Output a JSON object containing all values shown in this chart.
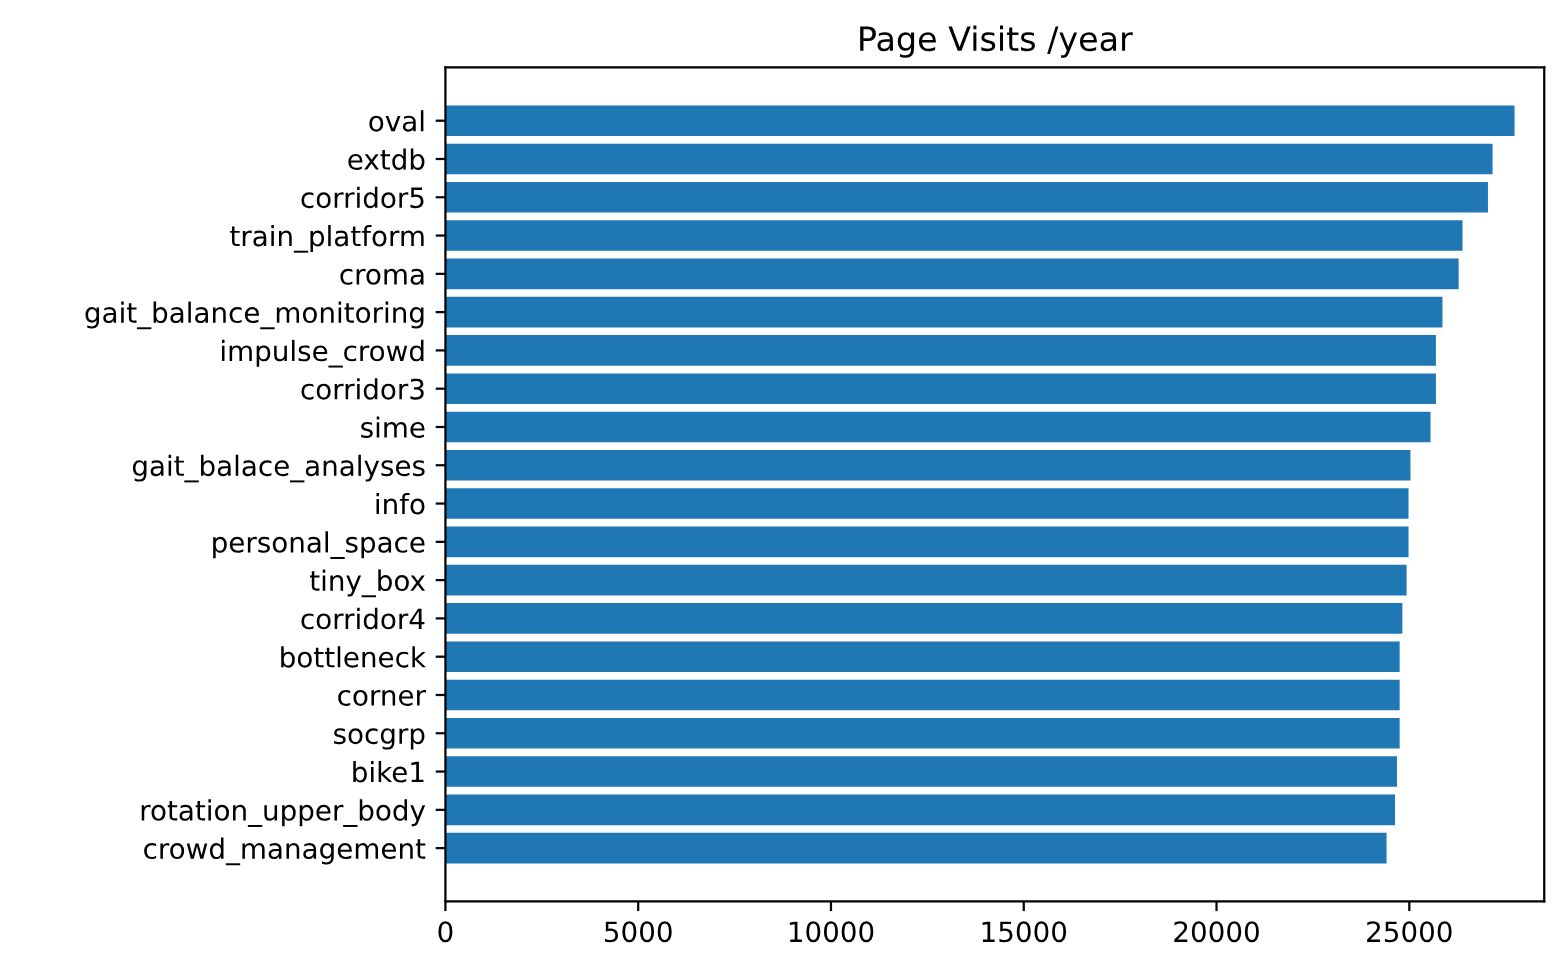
{
  "chart_data": {
    "type": "bar",
    "orientation": "horizontal",
    "title": "Page Visits /year",
    "categories": [
      "oval",
      "extdb",
      "corridor5",
      "train_platform",
      "croma",
      "gait_balance_monitoring",
      "impulse_crowd",
      "corridor3",
      "sime",
      "gait_balace_analyses",
      "info",
      "personal_space",
      "tiny_box",
      "corridor4",
      "bottleneck",
      "corner",
      "socgrp",
      "bike1",
      "rotation_upper_body",
      "crowd_management"
    ],
    "values": [
      27730,
      27160,
      27040,
      26380,
      26280,
      25860,
      25690,
      25690,
      25550,
      25030,
      24980,
      24980,
      24930,
      24820,
      24750,
      24750,
      24750,
      24680,
      24630,
      24410
    ],
    "color": "#1f77b4",
    "xlim": [
      0,
      28500
    ],
    "xticks": [
      0,
      5000,
      10000,
      15000,
      20000,
      25000
    ],
    "grid": false
  }
}
